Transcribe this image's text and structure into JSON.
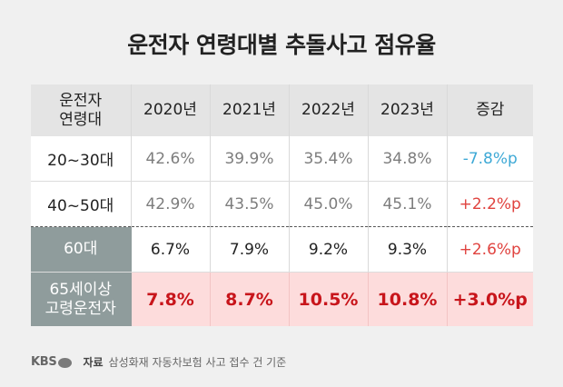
{
  "title": "운전자 연령대별 추돌사고 점유율",
  "table": {
    "header": {
      "age_line1": "운전자",
      "age_line2": "연령대",
      "years": [
        "2020년",
        "2021년",
        "2022년",
        "2023년"
      ],
      "change": "증감"
    },
    "rows": [
      {
        "age_line1": "20~30대",
        "age_line2": "",
        "values": [
          "42.6%",
          "39.9%",
          "35.4%",
          "34.8%"
        ],
        "change": "-7.8%p"
      },
      {
        "age_line1": "40~50대",
        "age_line2": "",
        "values": [
          "42.9%",
          "43.5%",
          "45.0%",
          "45.1%"
        ],
        "change": "+2.2%p"
      },
      {
        "age_line1": "60대",
        "age_line2": "",
        "values": [
          "6.7%",
          "7.9%",
          "9.2%",
          "9.3%"
        ],
        "change": "+2.6%p"
      },
      {
        "age_line1": "65세이상",
        "age_line2": "고령운전자",
        "values": [
          "7.8%",
          "8.7%",
          "10.5%",
          "10.8%"
        ],
        "change": "+3.0%p"
      }
    ]
  },
  "footer": {
    "logo": "KBS",
    "source_label": "자료",
    "source_text": "삼성화재 자동차보험 사고 접수 건 기준"
  },
  "colors": {
    "negative": "#3ea9d6",
    "positive": "#e0433f",
    "highlight_bg": "#fddcdc",
    "highlight_text": "#c8151b",
    "age_cell_bg": "#8f9c9c"
  }
}
